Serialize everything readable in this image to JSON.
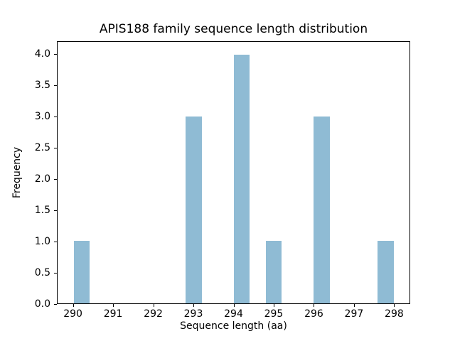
{
  "figure": {
    "background_color": "#ffffff",
    "spine_color": "#000000",
    "text_color": "#000000"
  },
  "chart_data": {
    "type": "bar",
    "subtype": "histogram",
    "title": "APIS188 family sequence length distribution",
    "xlabel": "Sequence length (aa)",
    "ylabel": "Frequency",
    "bar_color": "#8fbbd4",
    "grid": false,
    "legend": false,
    "xlim": [
      289.6,
      298.4
    ],
    "ylim": [
      0,
      4.2
    ],
    "bin_width": 0.4,
    "total_count": 13,
    "bins": [
      {
        "x0": 290.0,
        "x1": 290.4,
        "count": 1
      },
      {
        "x0": 292.8,
        "x1": 293.2,
        "count": 3
      },
      {
        "x0": 294.0,
        "x1": 294.4,
        "count": 4
      },
      {
        "x0": 294.8,
        "x1": 295.2,
        "count": 1
      },
      {
        "x0": 296.0,
        "x1": 296.4,
        "count": 3
      },
      {
        "x0": 297.6,
        "x1": 298.0,
        "count": 1
      }
    ],
    "sequence_length_counts": {
      "290": 1,
      "293": 3,
      "294": 4,
      "295": 1,
      "296": 3,
      "298": 1
    },
    "x_ticks": [
      {
        "value": 290,
        "label": "290"
      },
      {
        "value": 291,
        "label": "291"
      },
      {
        "value": 292,
        "label": "292"
      },
      {
        "value": 293,
        "label": "293"
      },
      {
        "value": 294,
        "label": "294"
      },
      {
        "value": 295,
        "label": "295"
      },
      {
        "value": 296,
        "label": "296"
      },
      {
        "value": 297,
        "label": "297"
      },
      {
        "value": 298,
        "label": "298"
      }
    ],
    "y_ticks": [
      {
        "value": 0.0,
        "label": "0.0"
      },
      {
        "value": 0.5,
        "label": "0.5"
      },
      {
        "value": 1.0,
        "label": "1.0"
      },
      {
        "value": 1.5,
        "label": "1.5"
      },
      {
        "value": 2.0,
        "label": "2.0"
      },
      {
        "value": 2.5,
        "label": "2.5"
      },
      {
        "value": 3.0,
        "label": "3.0"
      },
      {
        "value": 3.5,
        "label": "3.5"
      },
      {
        "value": 4.0,
        "label": "4.0"
      }
    ]
  }
}
